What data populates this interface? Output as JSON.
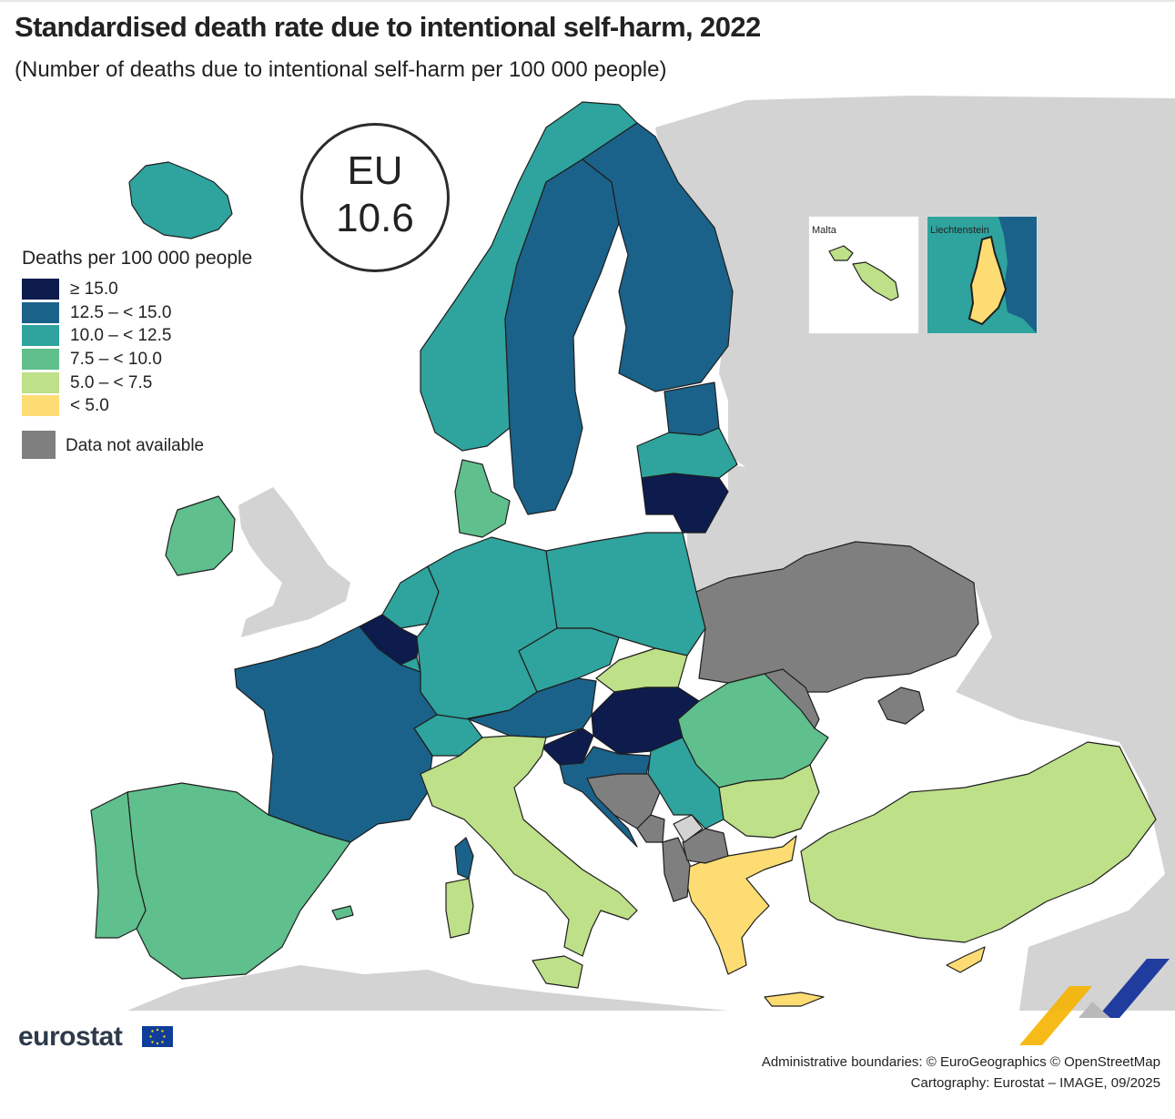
{
  "title": "Standardised death rate due to intentional self-harm, 2022",
  "subtitle": "(Number of deaths due to intentional self-harm per 100 000 people)",
  "eu_badge": {
    "label": "EU",
    "value": "10.6"
  },
  "legend": {
    "title": "Deaths per 100 000 people",
    "classes": [
      {
        "label": "≥ 15.0",
        "color": "#0e1b4d"
      },
      {
        "label": "12.5 – < 15.0",
        "color": "#1a6289"
      },
      {
        "label": "10.0 – < 12.5",
        "color": "#2fa39d"
      },
      {
        "label": "7.5 – < 10.0",
        "color": "#5fbf8d"
      },
      {
        "label": "5.0 – < 7.5",
        "color": "#bde088"
      },
      {
        "label": "< 5.0",
        "color": "#fddc73"
      }
    ],
    "not_available": {
      "label": "Data not available",
      "color": "#7f7f7f"
    }
  },
  "map": {
    "sea_color": "#ffffff",
    "non_reporting_color": "#d3d3d3",
    "regions": [
      {
        "id": "iceland",
        "class": 2
      },
      {
        "id": "norway",
        "class": 2
      },
      {
        "id": "sweden",
        "class": 1
      },
      {
        "id": "finland",
        "class": 1
      },
      {
        "id": "estonia",
        "class": 1
      },
      {
        "id": "latvia",
        "class": 2
      },
      {
        "id": "lithuania",
        "class": 0
      },
      {
        "id": "denmark",
        "class": 3
      },
      {
        "id": "ireland",
        "class": 3
      },
      {
        "id": "netherlands",
        "class": 2
      },
      {
        "id": "belgium",
        "class": 0
      },
      {
        "id": "luxembourg",
        "class": 2
      },
      {
        "id": "germany",
        "class": 2
      },
      {
        "id": "poland",
        "class": 2
      },
      {
        "id": "czechia",
        "class": 2
      },
      {
        "id": "slovakia",
        "class": 4
      },
      {
        "id": "austria",
        "class": 1
      },
      {
        "id": "hungary",
        "class": 0
      },
      {
        "id": "slovenia",
        "class": 0
      },
      {
        "id": "croatia",
        "class": 1
      },
      {
        "id": "switzerland",
        "class": 2
      },
      {
        "id": "france",
        "class": 1
      },
      {
        "id": "corsica",
        "class": 1
      },
      {
        "id": "spain",
        "class": 3
      },
      {
        "id": "portugal",
        "class": 3
      },
      {
        "id": "balearics",
        "class": 3
      },
      {
        "id": "italy",
        "class": 4
      },
      {
        "id": "sicily",
        "class": 4
      },
      {
        "id": "sardinia",
        "class": 4
      },
      {
        "id": "romania",
        "class": 3
      },
      {
        "id": "bulgaria",
        "class": 4
      },
      {
        "id": "serbia",
        "class": 2
      },
      {
        "id": "greece",
        "class": 5
      },
      {
        "id": "crete",
        "class": 5
      },
      {
        "id": "cyprus",
        "class": 5
      },
      {
        "id": "turkiye",
        "class": 4
      },
      {
        "id": "malta",
        "class": 4
      },
      {
        "id": "liechtenstein",
        "class": 5
      },
      {
        "id": "ukraine",
        "class": "na"
      },
      {
        "id": "moldova",
        "class": "na"
      },
      {
        "id": "crimea",
        "class": "na"
      },
      {
        "id": "bosnia",
        "class": "na"
      },
      {
        "id": "montenegro",
        "class": "na"
      },
      {
        "id": "albania",
        "class": "na"
      },
      {
        "id": "north-macedonia",
        "class": "na"
      },
      {
        "id": "kosovo",
        "class": "non-reporting"
      }
    ]
  },
  "insets": {
    "malta_label": "Malta",
    "liechtenstein_label": "Liechtenstein"
  },
  "logo": {
    "text": "eurostat"
  },
  "credits": {
    "line1": "Administrative boundaries: © EuroGeographics © OpenStreetMap",
    "line2": "Cartography: Eurostat – IMAGE, 09/2025"
  }
}
